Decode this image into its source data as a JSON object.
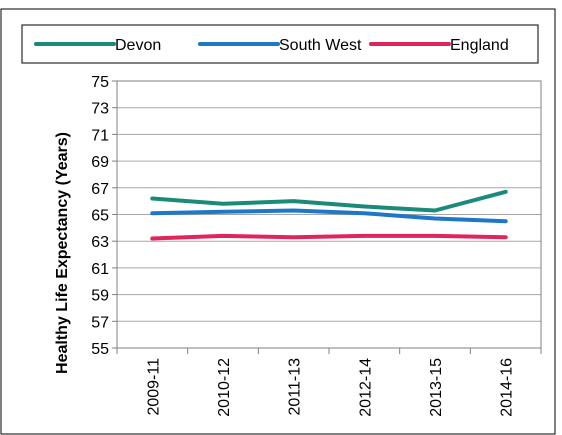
{
  "chart_data": {
    "type": "line",
    "title": "",
    "xlabel": "",
    "ylabel": "Healthy Life Expectancy (Years)",
    "ylim": [
      55,
      75
    ],
    "ytick_step": 2,
    "grid": "horizontal",
    "legend_position": "top",
    "categories": [
      "2009-11",
      "2010-12",
      "2011-13",
      "2012-14",
      "2013-15",
      "2014-16"
    ],
    "yticks": [
      "55",
      "57",
      "59",
      "61",
      "63",
      "65",
      "67",
      "69",
      "71",
      "73",
      "75"
    ],
    "series": [
      {
        "name": "Devon",
        "color": "#1a8a7a",
        "values": [
          66.2,
          65.8,
          66.0,
          65.6,
          65.3,
          66.7
        ]
      },
      {
        "name": "South West",
        "color": "#1f77c8",
        "values": [
          65.1,
          65.2,
          65.3,
          65.1,
          64.7,
          64.5
        ]
      },
      {
        "name": "England",
        "color": "#e0255b",
        "values": [
          63.2,
          63.4,
          63.3,
          63.4,
          63.4,
          63.3
        ]
      }
    ]
  }
}
